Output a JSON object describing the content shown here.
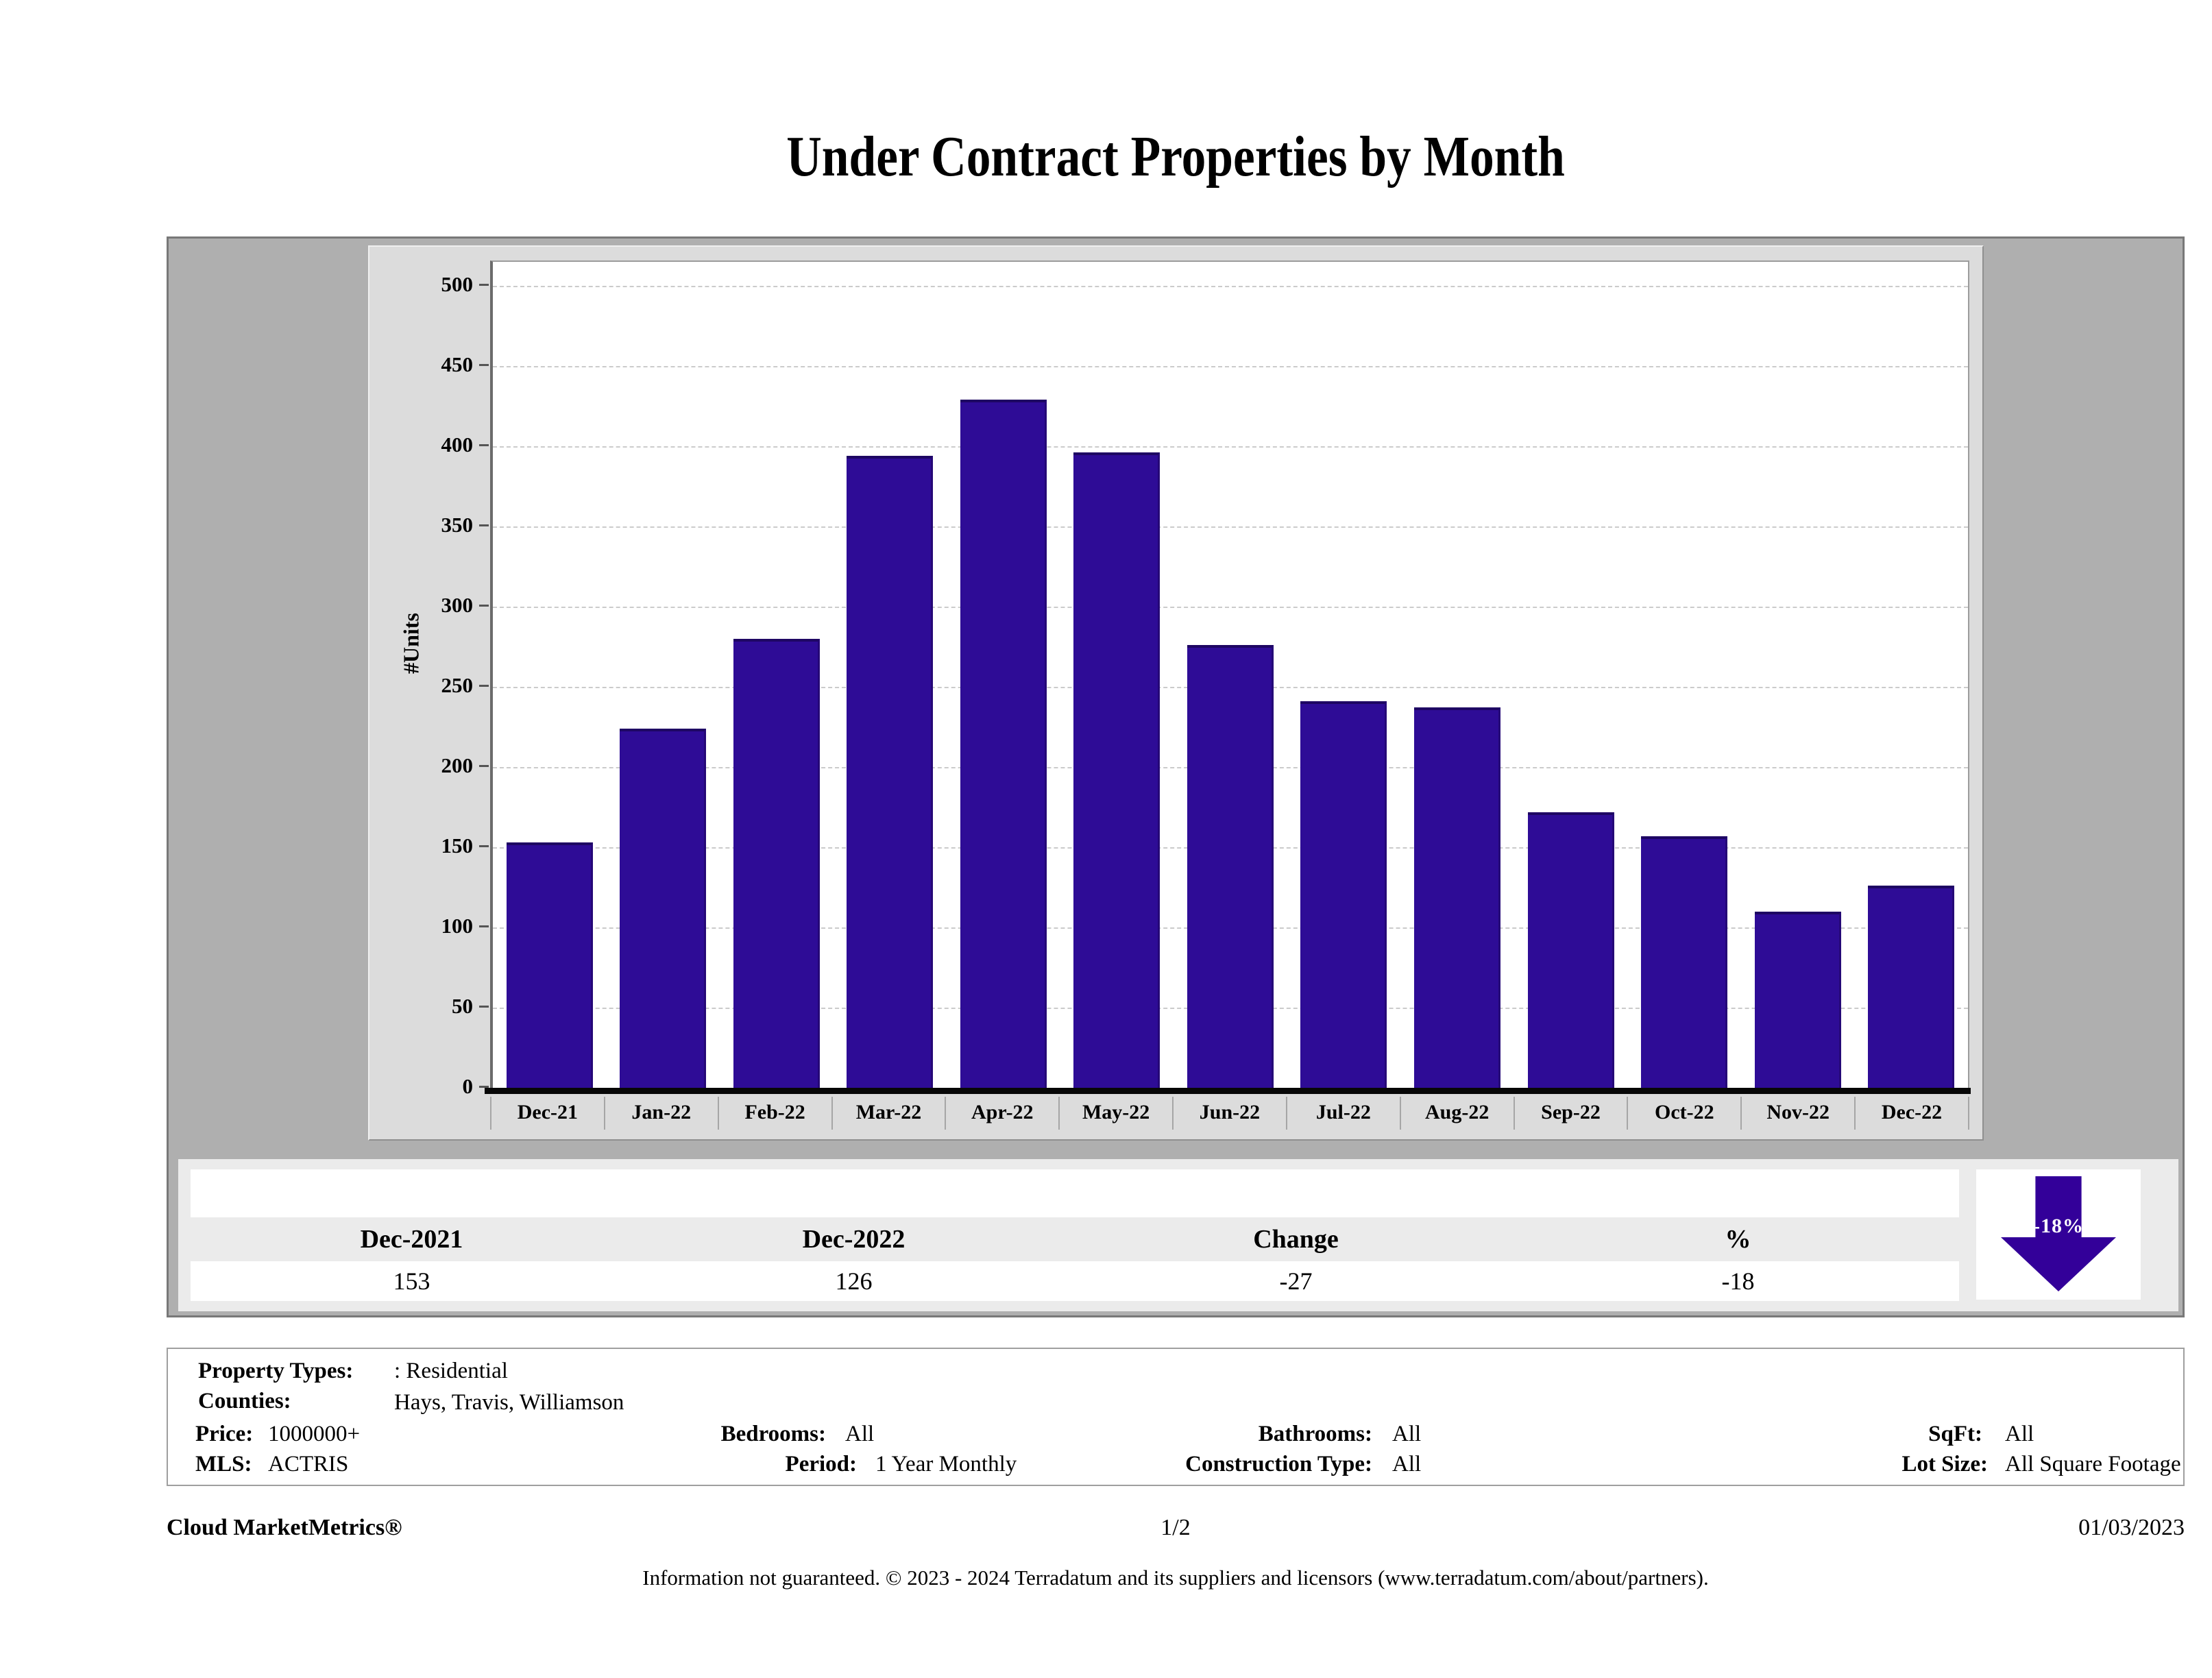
{
  "title": "Under Contract Properties by Month",
  "chart_data": {
    "type": "bar",
    "title": "Under Contract Properties by Month",
    "xlabel": "",
    "ylabel": "#Units",
    "ylim": [
      0,
      500
    ],
    "ytick_step": 50,
    "y_ticks": [
      500,
      450,
      400,
      350,
      300,
      250,
      200,
      150,
      100,
      50,
      0
    ],
    "grid": "horizontal-dashed",
    "legend": "none",
    "bar_color": "#2E0C96",
    "categories": [
      "Dec-21",
      "Jan-22",
      "Feb-22",
      "Mar-22",
      "Apr-22",
      "May-22",
      "Jun-22",
      "Jul-22",
      "Aug-22",
      "Sep-22",
      "Oct-22",
      "Nov-22",
      "Dec-22"
    ],
    "values": [
      153,
      224,
      280,
      394,
      429,
      396,
      276,
      241,
      237,
      172,
      157,
      110,
      126
    ]
  },
  "summary_table": {
    "columns": [
      "Dec-2021",
      "Dec-2022",
      "Change",
      "%"
    ],
    "values": [
      "153",
      "126",
      "-27",
      "-18"
    ]
  },
  "badge": {
    "label": "-18%",
    "direction": "down",
    "color": "#330099"
  },
  "filters": {
    "property_types_label": "Property Types:",
    "property_types": ": Residential",
    "counties_label": "Counties:",
    "counties": "Hays, Travis, Williamson",
    "price_label": "Price:",
    "price": "1000000+",
    "bedrooms_label": "Bedrooms:",
    "bedrooms": "All",
    "bathrooms_label": "Bathrooms:",
    "bathrooms": "All",
    "sqft_label": "SqFt:",
    "sqft": "All",
    "mls_label": "MLS:",
    "mls": "ACTRIS",
    "period_label": "Period:",
    "period": "1 Year Monthly",
    "construction_label": "Construction Type:",
    "construction": "All",
    "lot_label": "Lot Size:",
    "lot": "All Square Footage"
  },
  "footer": {
    "brand": "Cloud MarketMetrics®",
    "page": "1/2",
    "date": "01/03/2023",
    "disclaimer": "Information not guaranteed. © 2023 - 2024 Terradatum and its suppliers and licensors (www.terradatum.com/about/partners)."
  }
}
